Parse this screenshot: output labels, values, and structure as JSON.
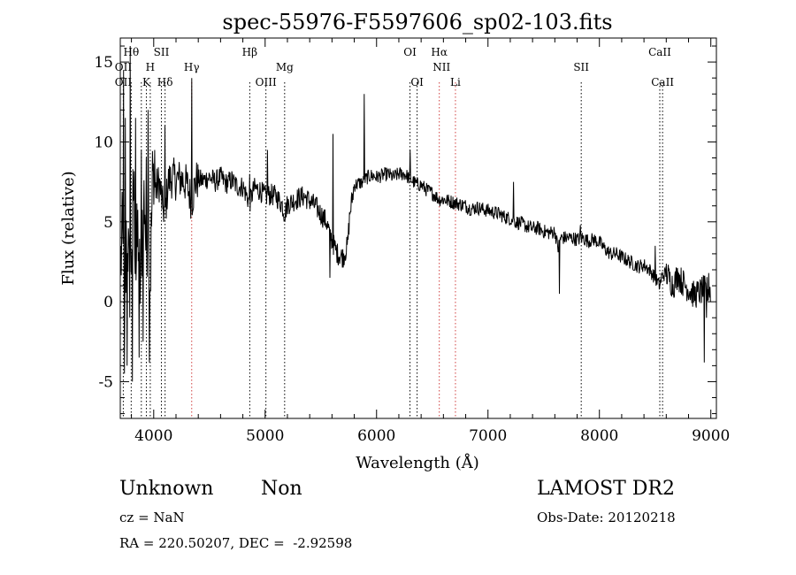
{
  "chart_data": {
    "type": "line",
    "title": "spec-55976-F5597606_sp02-103.fits",
    "xlabel": "Wavelength (Å)",
    "ylabel": "Flux (relative)",
    "xlim": [
      3700,
      9050
    ],
    "ylim": [
      -7.3,
      16.5
    ],
    "xticks": [
      4000,
      5000,
      6000,
      7000,
      8000,
      9000
    ],
    "yticks": [
      -5,
      0,
      5,
      10,
      15
    ],
    "grid": false,
    "series": [
      {
        "color": "#000000",
        "anchors": [
          [
            3700,
            2.0
          ],
          [
            3720,
            4.0
          ],
          [
            3740,
            -2.0
          ],
          [
            3760,
            6.0
          ],
          [
            3780,
            1.0
          ],
          [
            3800,
            3.0
          ],
          [
            3820,
            7.5
          ],
          [
            3840,
            2.0
          ],
          [
            3860,
            4.5
          ],
          [
            3880,
            0.5
          ],
          [
            3900,
            6.0
          ],
          [
            3920,
            6.5
          ],
          [
            3933,
            2.5
          ],
          [
            3950,
            7.0
          ],
          [
            3968,
            1.0
          ],
          [
            3990,
            7.5
          ],
          [
            4020,
            7.0
          ],
          [
            4050,
            7.5
          ],
          [
            4080,
            6.0
          ],
          [
            4102,
            5.5
          ],
          [
            4130,
            7.5
          ],
          [
            4170,
            7.8
          ],
          [
            4200,
            7.6
          ],
          [
            4250,
            7.7
          ],
          [
            4300,
            7.3
          ],
          [
            4340,
            6.3
          ],
          [
            4380,
            7.6
          ],
          [
            4450,
            7.6
          ],
          [
            4500,
            7.8
          ],
          [
            4550,
            7.5
          ],
          [
            4600,
            7.8
          ],
          [
            4650,
            7.4
          ],
          [
            4700,
            7.6
          ],
          [
            4750,
            7.2
          ],
          [
            4800,
            7.2
          ],
          [
            4861,
            6.2
          ],
          [
            4900,
            7.1
          ],
          [
            4950,
            7.0
          ],
          [
            5000,
            6.6
          ],
          [
            5050,
            6.7
          ],
          [
            5100,
            6.6
          ],
          [
            5150,
            6.1
          ],
          [
            5175,
            5.5
          ],
          [
            5200,
            6.1
          ],
          [
            5250,
            6.3
          ],
          [
            5300,
            6.5
          ],
          [
            5350,
            6.6
          ],
          [
            5400,
            6.3
          ],
          [
            5450,
            6.0
          ],
          [
            5500,
            5.5
          ],
          [
            5550,
            5.0
          ],
          [
            5600,
            3.8
          ],
          [
            5650,
            3.0
          ],
          [
            5700,
            2.8
          ],
          [
            5740,
            3.5
          ],
          [
            5760,
            5.5
          ],
          [
            5800,
            7.3
          ],
          [
            5840,
            7.4
          ],
          [
            5880,
            7.5
          ],
          [
            5920,
            7.8
          ],
          [
            5960,
            7.9
          ],
          [
            6000,
            7.8
          ],
          [
            6050,
            7.9
          ],
          [
            6100,
            8.0
          ],
          [
            6150,
            7.8
          ],
          [
            6200,
            8.0
          ],
          [
            6250,
            8.0
          ],
          [
            6300,
            7.7
          ],
          [
            6350,
            7.4
          ],
          [
            6400,
            7.3
          ],
          [
            6450,
            7.0
          ],
          [
            6500,
            6.8
          ],
          [
            6563,
            6.4
          ],
          [
            6600,
            6.4
          ],
          [
            6650,
            6.3
          ],
          [
            6700,
            6.2
          ],
          [
            6750,
            6.1
          ],
          [
            6800,
            6.0
          ],
          [
            6850,
            5.8
          ],
          [
            6900,
            5.9
          ],
          [
            6950,
            5.8
          ],
          [
            7000,
            5.7
          ],
          [
            7050,
            5.6
          ],
          [
            7100,
            5.5
          ],
          [
            7150,
            5.3
          ],
          [
            7200,
            5.2
          ],
          [
            7250,
            5.0
          ],
          [
            7300,
            4.9
          ],
          [
            7350,
            4.7
          ],
          [
            7400,
            4.6
          ],
          [
            7450,
            4.6
          ],
          [
            7500,
            4.4
          ],
          [
            7550,
            4.3
          ],
          [
            7600,
            4.4
          ],
          [
            7630,
            3.3
          ],
          [
            7650,
            4.0
          ],
          [
            7700,
            4.0
          ],
          [
            7750,
            4.0
          ],
          [
            7800,
            3.9
          ],
          [
            7850,
            4.0
          ],
          [
            7900,
            3.8
          ],
          [
            7950,
            3.9
          ],
          [
            8000,
            3.7
          ],
          [
            8050,
            3.3
          ],
          [
            8100,
            3.0
          ],
          [
            8150,
            3.0
          ],
          [
            8200,
            2.8
          ],
          [
            8250,
            2.6
          ],
          [
            8300,
            2.4
          ],
          [
            8350,
            2.2
          ],
          [
            8400,
            2.3
          ],
          [
            8450,
            2.0
          ],
          [
            8500,
            1.5
          ],
          [
            8542,
            1.0
          ],
          [
            8560,
            1.6
          ],
          [
            8600,
            1.8
          ],
          [
            8662,
            1.0
          ],
          [
            8700,
            1.6
          ],
          [
            8750,
            1.2
          ],
          [
            8800,
            0.8
          ],
          [
            8850,
            0.4
          ],
          [
            8900,
            0.6
          ],
          [
            8950,
            0.8
          ],
          [
            9000,
            0.6
          ]
        ],
        "spikes": [
          [
            3728,
            14.5
          ],
          [
            3736,
            -4.5
          ],
          [
            3744,
            11.5
          ],
          [
            3760,
            -4.0
          ],
          [
            3790,
            16.0
          ],
          [
            3810,
            -5.0
          ],
          [
            3836,
            11.5
          ],
          [
            3870,
            -3.5
          ],
          [
            3889,
            9.5
          ],
          [
            3905,
            -2.5
          ],
          [
            3935,
            9.0
          ],
          [
            3950,
            12.0
          ],
          [
            3960,
            -3.8
          ],
          [
            4010,
            9.5
          ],
          [
            4100,
            11.0
          ],
          [
            4340,
            14.0
          ],
          [
            4860,
            8.0
          ],
          [
            5020,
            9.5
          ],
          [
            5580,
            1.5
          ],
          [
            5610,
            10.5
          ],
          [
            5890,
            13.0
          ],
          [
            6300,
            9.5
          ],
          [
            7230,
            7.5
          ],
          [
            7640,
            0.5
          ],
          [
            7830,
            4.8
          ],
          [
            8500,
            3.5
          ],
          [
            8710,
            1.8
          ],
          [
            8940,
            -3.8
          ],
          [
            8960,
            -1.0
          ],
          [
            8980,
            1.8
          ],
          [
            9000,
            0.0
          ]
        ]
      }
    ],
    "annotations": [
      {
        "text": "OII",
        "x": 3727,
        "row": 3
      },
      {
        "text": "Hθ",
        "x": 3798,
        "row": 1
      },
      {
        "text": "OII",
        "x": 3727,
        "row": 2
      },
      {
        "text": "K",
        "x": 3934,
        "row": 3
      },
      {
        "text": "H",
        "x": 3969,
        "row": 2
      },
      {
        "text": "SII",
        "x": 4069,
        "row": 1
      },
      {
        "text": "Hδ",
        "x": 4102,
        "row": 3
      },
      {
        "text": "Hγ",
        "x": 4341,
        "row": 2
      },
      {
        "text": "Hβ",
        "x": 4862,
        "row": 1
      },
      {
        "text": "OIII",
        "x": 5007,
        "row": 3
      },
      {
        "text": "Mg",
        "x": 5175,
        "row": 2
      },
      {
        "text": "OI",
        "x": 6300,
        "row": 1
      },
      {
        "text": "OI",
        "x": 6364,
        "row": 3
      },
      {
        "text": "Hα",
        "x": 6563,
        "row": 1
      },
      {
        "text": "NII",
        "x": 6583,
        "row": 2
      },
      {
        "text": "Li",
        "x": 6708,
        "row": 3
      },
      {
        "text": "SII",
        "x": 7837,
        "row": 2
      },
      {
        "text": "CaII",
        "x": 8542,
        "row": 1
      },
      {
        "text": "CaII",
        "x": 8567,
        "row": 3
      }
    ],
    "line_markers": [
      {
        "x": 3727,
        "color": "#000000"
      },
      {
        "x": 3798,
        "color": "#000000"
      },
      {
        "x": 3889,
        "color": "#000000"
      },
      {
        "x": 3934,
        "color": "#000000"
      },
      {
        "x": 3969,
        "color": "#000000"
      },
      {
        "x": 4069,
        "color": "#000000"
      },
      {
        "x": 4102,
        "color": "#000000"
      },
      {
        "x": 4341,
        "color": "#d04040"
      },
      {
        "x": 4862,
        "color": "#000000"
      },
      {
        "x": 5007,
        "color": "#000000"
      },
      {
        "x": 5175,
        "color": "#000000"
      },
      {
        "x": 6300,
        "color": "#000000"
      },
      {
        "x": 6364,
        "color": "#000000"
      },
      {
        "x": 6563,
        "color": "#d04040"
      },
      {
        "x": 6708,
        "color": "#d04040"
      },
      {
        "x": 7837,
        "color": "#000000"
      },
      {
        "x": 8542,
        "color": "#000000"
      },
      {
        "x": 8567,
        "color": "#000000"
      }
    ]
  },
  "info": {
    "class": "Unknown",
    "subclass": "Non",
    "survey": "LAMOST DR2",
    "cz": "cz = NaN",
    "obs_date": "Obs-Date: 20120218",
    "coords": "RA = 220.50207, DEC =  -2.92598"
  }
}
